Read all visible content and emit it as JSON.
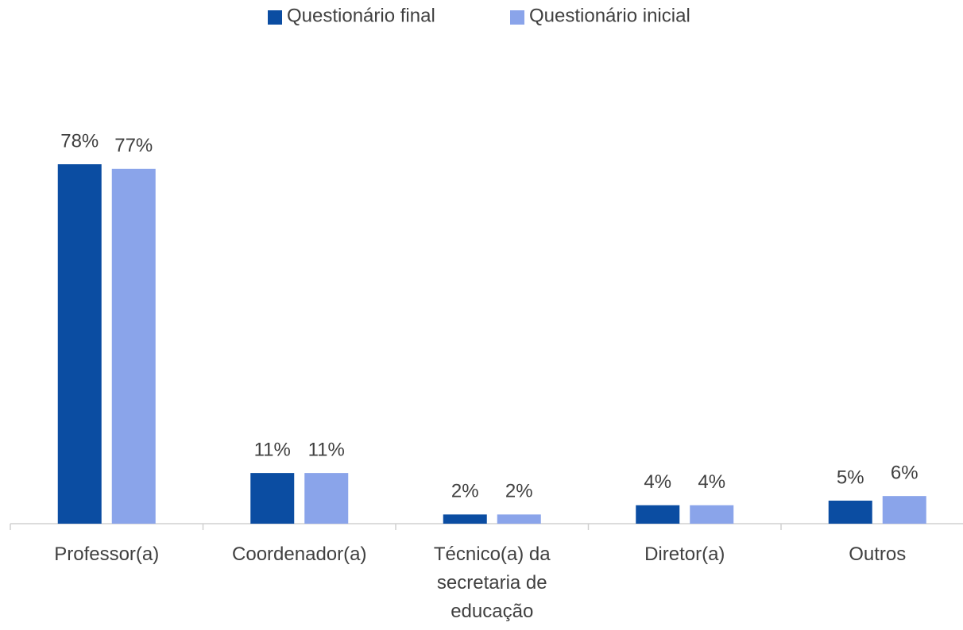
{
  "chart_data": {
    "type": "bar",
    "categories": [
      "Professor(a)",
      "Coordenador(a)",
      "Técnico(a) da secretaria de educação",
      "Diretor(a)",
      "Outros"
    ],
    "series": [
      {
        "name": "Questionário final",
        "color": "#0b4da2",
        "values": [
          78,
          11,
          2,
          4,
          5
        ],
        "value_labels": [
          "78%",
          "11%",
          "2%",
          "4%",
          "5%"
        ]
      },
      {
        "name": "Questionário inicial",
        "color": "#8aa4ea",
        "values": [
          77,
          11,
          2,
          4,
          6
        ],
        "value_labels": [
          "77%",
          "11%",
          "2%",
          "4%",
          "6%"
        ]
      }
    ],
    "legend": "top"
  }
}
